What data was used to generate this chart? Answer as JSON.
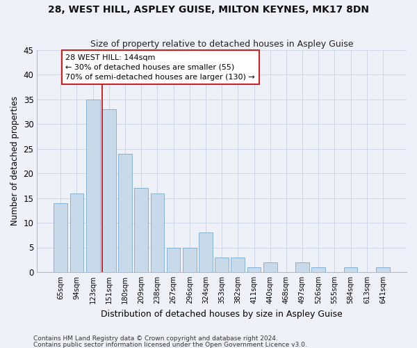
{
  "title": "28, WEST HILL, ASPLEY GUISE, MILTON KEYNES, MK17 8DN",
  "subtitle": "Size of property relative to detached houses in Aspley Guise",
  "xlabel": "Distribution of detached houses by size in Aspley Guise",
  "ylabel": "Number of detached properties",
  "categories": [
    "65sqm",
    "94sqm",
    "123sqm",
    "151sqm",
    "180sqm",
    "209sqm",
    "238sqm",
    "267sqm",
    "296sqm",
    "324sqm",
    "353sqm",
    "382sqm",
    "411sqm",
    "440sqm",
    "468sqm",
    "497sqm",
    "526sqm",
    "555sqm",
    "584sqm",
    "613sqm",
    "641sqm"
  ],
  "values": [
    14,
    16,
    35,
    33,
    24,
    17,
    16,
    5,
    5,
    8,
    3,
    3,
    1,
    2,
    0,
    2,
    1,
    0,
    1,
    0,
    1
  ],
  "bar_color": "#c8d9ea",
  "bar_edge_color": "#7aaacf",
  "grid_color": "#d0d8e8",
  "background_color": "#eef2f8",
  "vline_index": 3,
  "vline_color": "#cc2222",
  "annotation_line1": "28 WEST HILL: 144sqm",
  "annotation_line2": "← 30% of detached houses are smaller (55)",
  "annotation_line3": "70% of semi-detached houses are larger (130) →",
  "annotation_box_color": "#cc2222",
  "footnote1": "Contains HM Land Registry data © Crown copyright and database right 2024.",
  "footnote2": "Contains public sector information licensed under the Open Government Licence v3.0.",
  "ylim": [
    0,
    45
  ],
  "yticks": [
    0,
    5,
    10,
    15,
    20,
    25,
    30,
    35,
    40,
    45
  ]
}
